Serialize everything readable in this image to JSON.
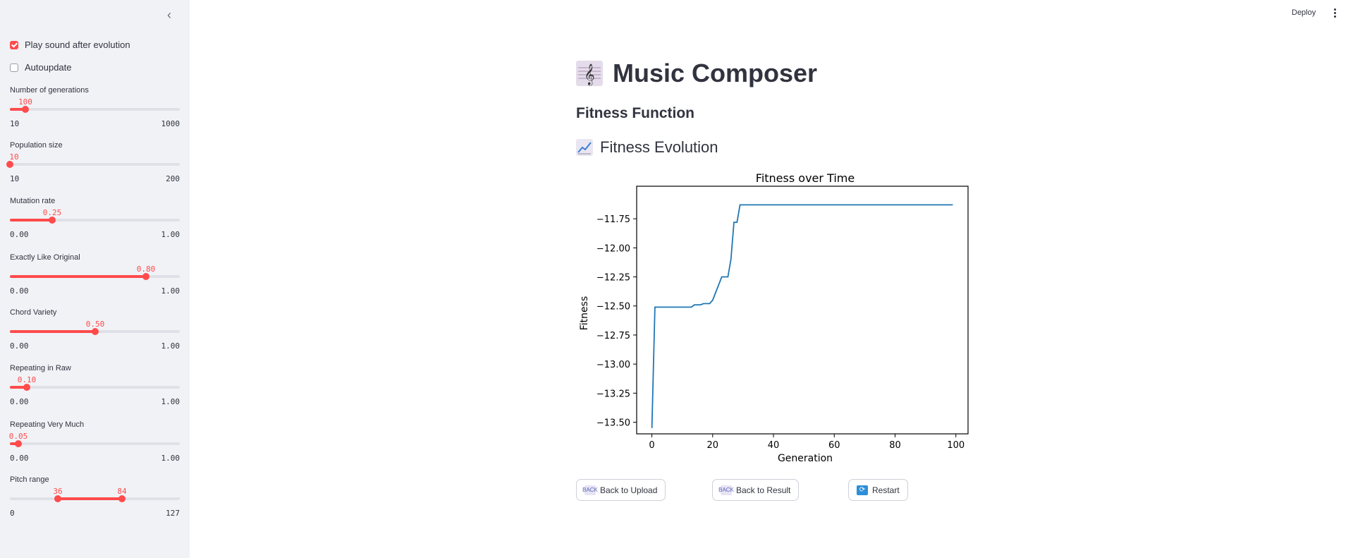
{
  "sidebar": {
    "checkboxes": [
      {
        "label": "Play sound after evolution",
        "checked": true
      },
      {
        "label": "Autoupdate",
        "checked": false
      }
    ],
    "sliders": [
      {
        "label": "Number of generations",
        "value": "100",
        "min": "10",
        "max": "1000",
        "fraction": 0.091
      },
      {
        "label": "Population size",
        "value": "10",
        "min": "10",
        "max": "200",
        "fraction": 0.0
      },
      {
        "label": "Mutation rate",
        "value": "0.25",
        "min": "0.00",
        "max": "1.00",
        "fraction": 0.25
      },
      {
        "label": "Exactly Like Original",
        "value": "0.80",
        "min": "0.00",
        "max": "1.00",
        "fraction": 0.8
      },
      {
        "label": "Chord Variety",
        "value": "0.50",
        "min": "0.00",
        "max": "1.00",
        "fraction": 0.5
      },
      {
        "label": "Repeating in Raw",
        "value": "0.10",
        "min": "0.00",
        "max": "1.00",
        "fraction": 0.1
      },
      {
        "label": "Repeating Very Much",
        "value": "0.05",
        "min": "0.00",
        "max": "1.00",
        "fraction": 0.05
      }
    ],
    "pitch_range": {
      "label": "Pitch range",
      "low": "36",
      "high": "84",
      "min": "0",
      "max": "127",
      "low_fraction": 0.283,
      "high_fraction": 0.661
    }
  },
  "header": {
    "deploy_label": "Deploy"
  },
  "main": {
    "title": "Music Composer",
    "fitness_heading": "Fitness Function",
    "evolution_heading": "Fitness Evolution"
  },
  "buttons": {
    "back_upload": "Back to Upload",
    "back_result": "Back to Result",
    "restart": "Restart",
    "back_icon_text": "BACK"
  },
  "colors": {
    "accent": "#ff4b4b",
    "line": "#1f77b4",
    "sidebar_bg": "#f0f2f6"
  },
  "chart_data": {
    "type": "line",
    "title": "Fitness over Time",
    "xlabel": "Generation",
    "ylabel": "Fitness",
    "xlim": [
      -5,
      104
    ],
    "ylim": [
      -13.6,
      -11.47
    ],
    "xticks": [
      0,
      20,
      40,
      60,
      80,
      100
    ],
    "xtick_labels": [
      "0",
      "20",
      "40",
      "60",
      "80",
      "100"
    ],
    "yticks": [
      -13.5,
      -13.25,
      -13.0,
      -12.75,
      -12.5,
      -12.25,
      -12.0,
      -11.75
    ],
    "ytick_labels": [
      "−13.50",
      "−13.25",
      "−13.00",
      "−12.75",
      "−12.50",
      "−12.25",
      "−12.00",
      "−11.75"
    ],
    "grid": false,
    "series": [
      {
        "x": [
          0,
          1,
          13,
          14,
          16,
          17,
          19,
          20,
          23,
          25,
          26,
          27,
          28,
          29,
          99
        ],
        "y": [
          -13.55,
          -12.51,
          -12.51,
          -12.49,
          -12.49,
          -12.48,
          -12.48,
          -12.45,
          -12.25,
          -12.25,
          -12.1,
          -11.78,
          -11.78,
          -11.63,
          -11.63
        ]
      }
    ]
  }
}
